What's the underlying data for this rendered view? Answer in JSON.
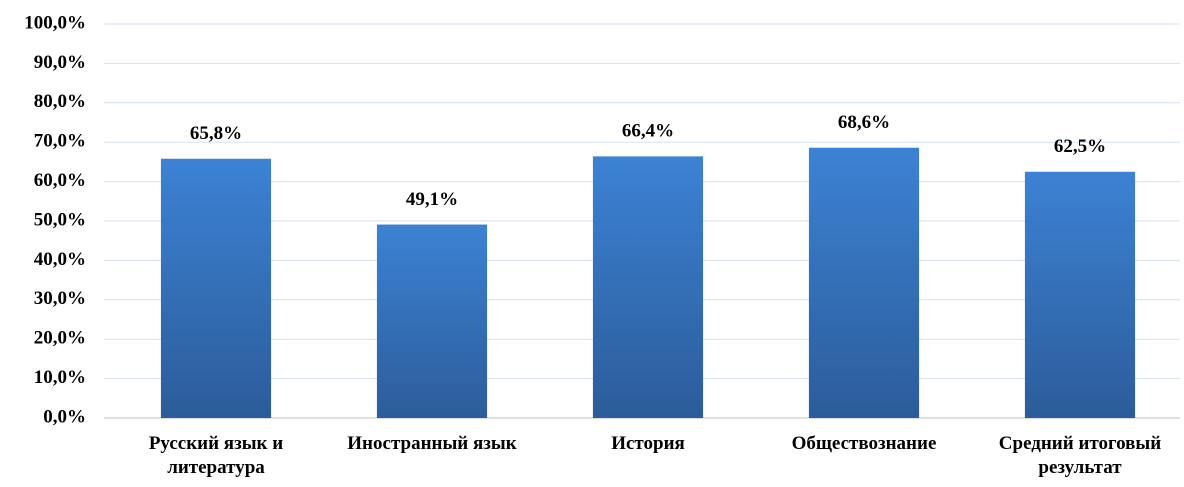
{
  "chart_data": {
    "type": "bar",
    "categories": [
      "Русский язык и литература",
      "Иностранный язык",
      "История",
      "Обществознание",
      "Средний итоговый результат"
    ],
    "values": [
      65.8,
      49.1,
      66.4,
      68.6,
      62.5
    ],
    "value_labels": [
      "65,8%",
      "49,1%",
      "66,4%",
      "68,6%",
      "62,5%"
    ],
    "color": "#3a7dcc",
    "ylim": [
      0,
      100
    ],
    "yticks": [
      {
        "value": 0,
        "label": "0,0%"
      },
      {
        "value": 10,
        "label": "10,0%"
      },
      {
        "value": 20,
        "label": "20,0%"
      },
      {
        "value": 30,
        "label": "30,0%"
      },
      {
        "value": 40,
        "label": "40,0%"
      },
      {
        "value": 50,
        "label": "50,0%"
      },
      {
        "value": 60,
        "label": "60,0%"
      },
      {
        "value": 70,
        "label": "70,0%"
      },
      {
        "value": 80,
        "label": "80,0%"
      },
      {
        "value": 90,
        "label": "90,0%"
      },
      {
        "value": 100,
        "label": "100,0%"
      }
    ],
    "grid": true
  }
}
